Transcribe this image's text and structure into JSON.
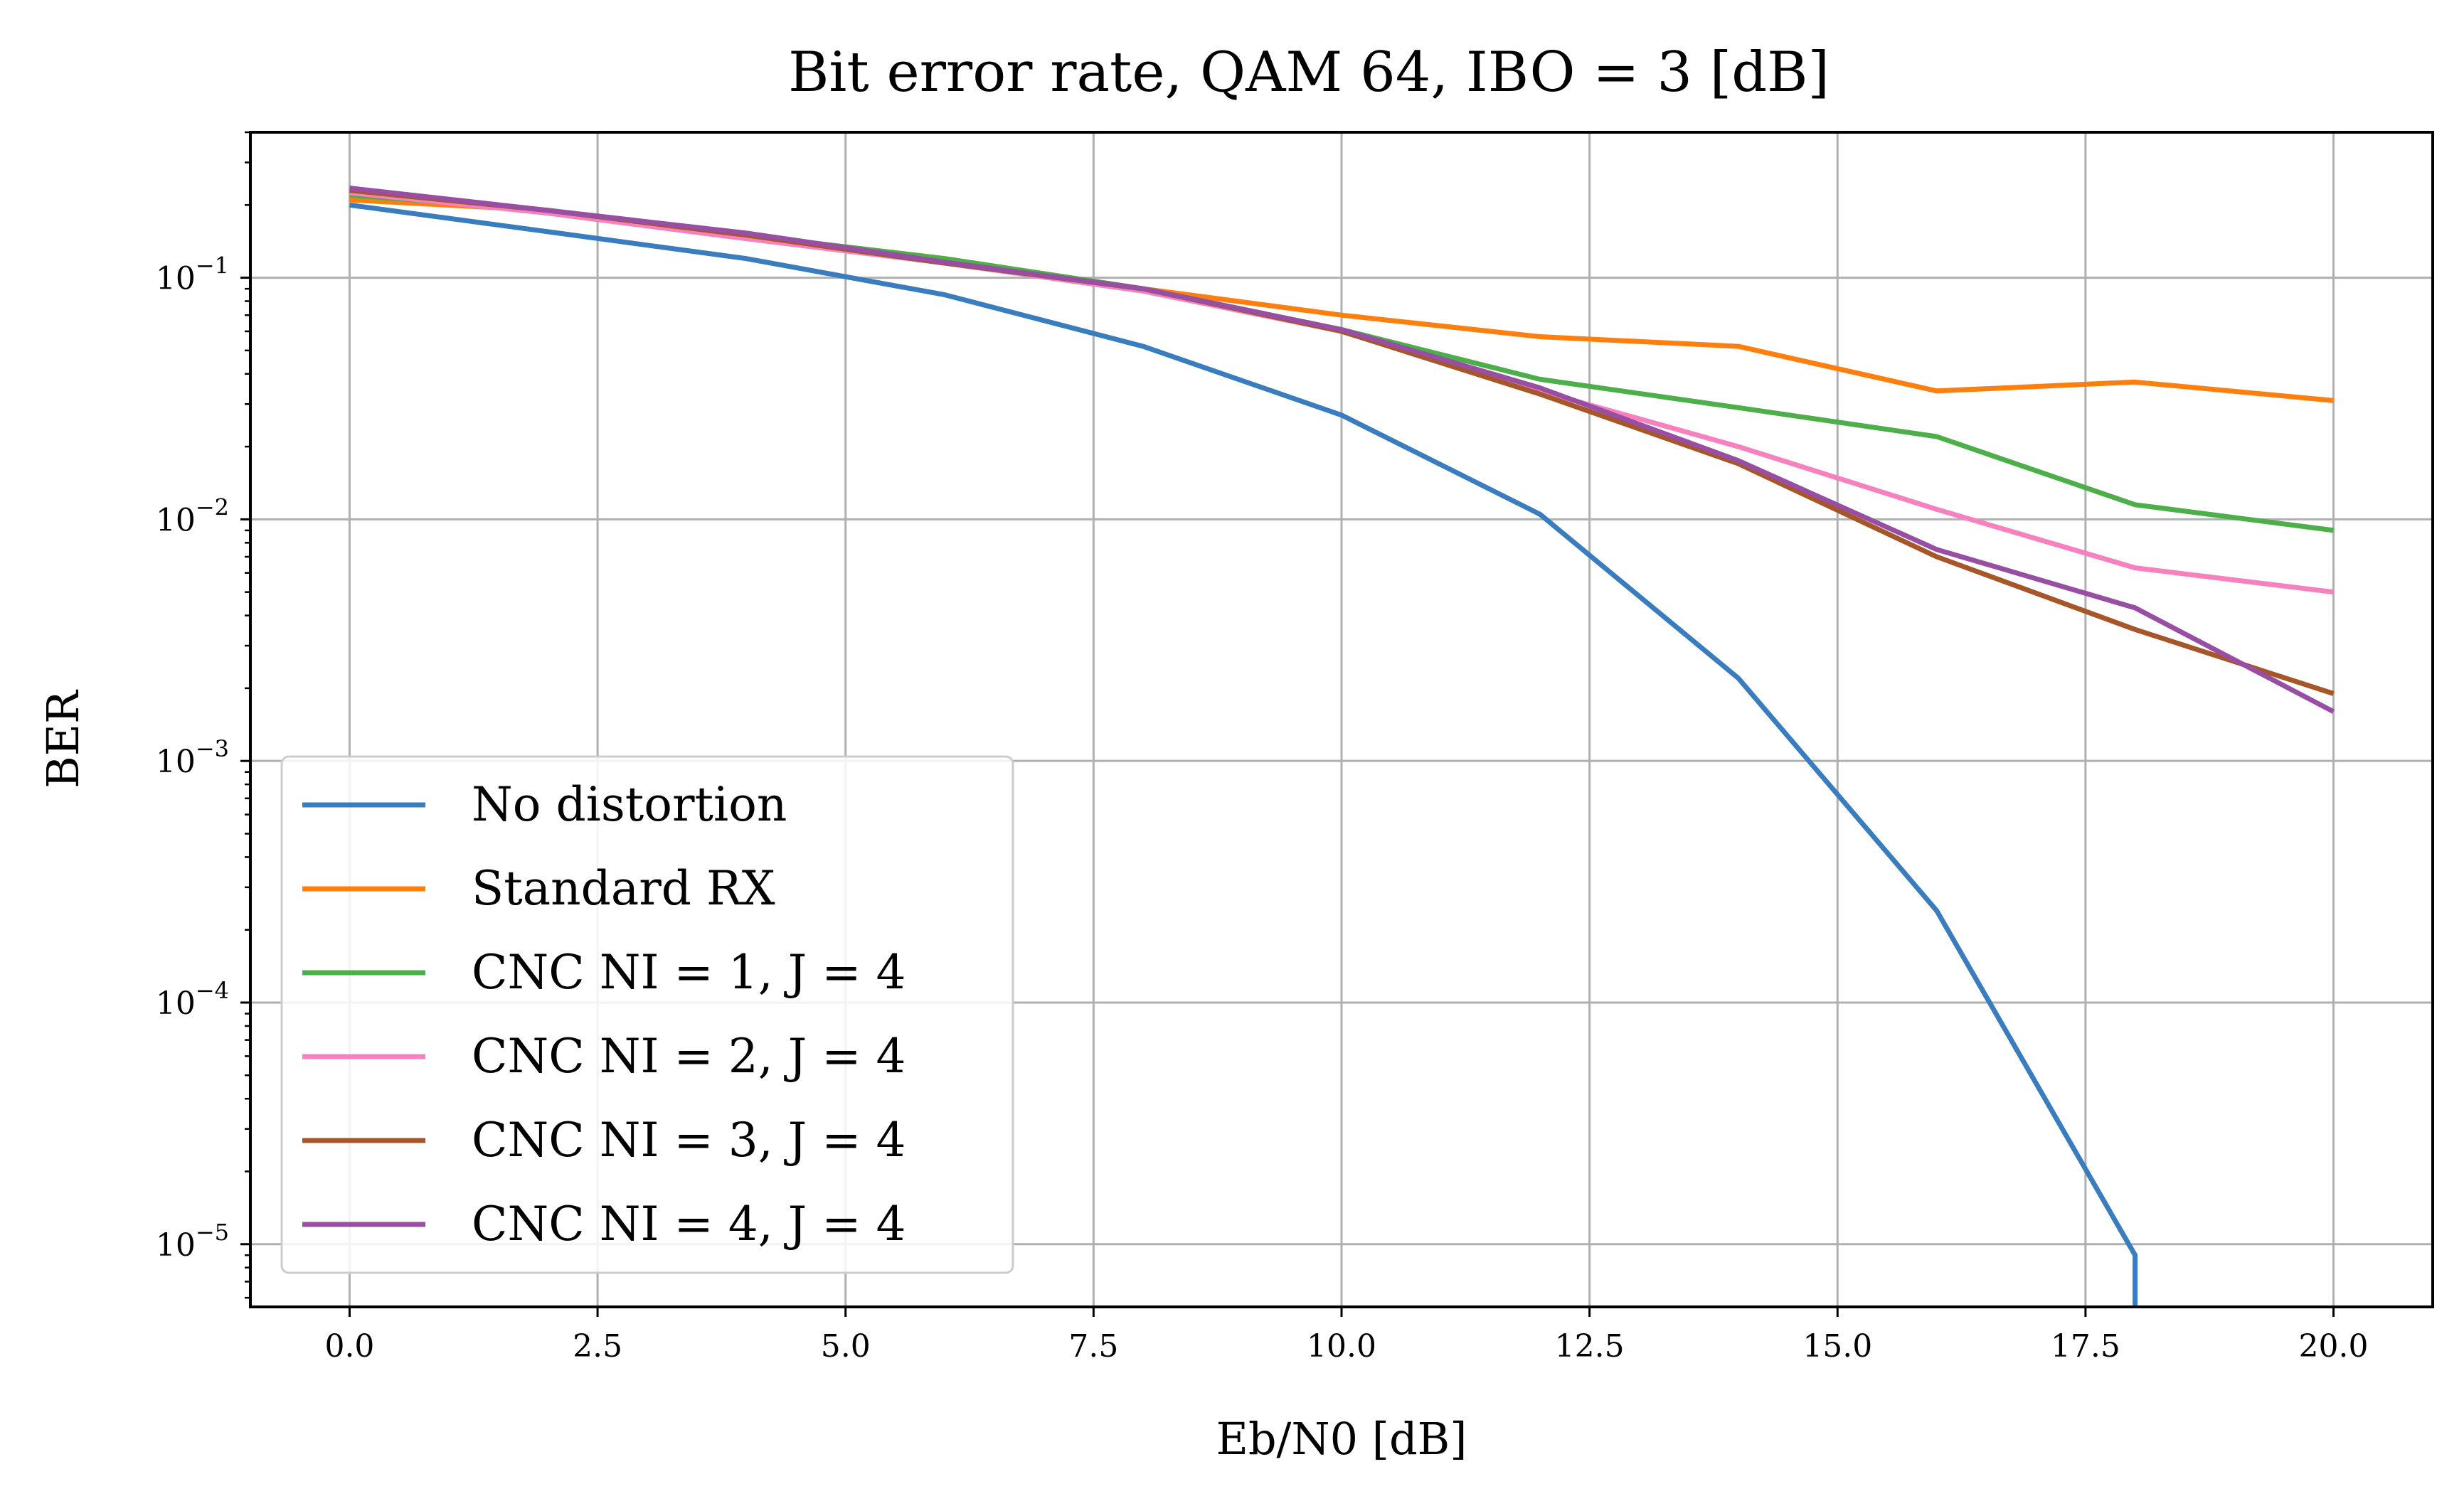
{
  "chart_data": {
    "type": "line",
    "title": "Bit error rate, QAM 64, IBO = 3 [dB]",
    "xlabel": "Eb/N0 [dB]",
    "ylabel": "BER",
    "xlim": [
      -1,
      21
    ],
    "ylim": [
      5.5e-06,
      0.4
    ],
    "yscale": "log",
    "grid": true,
    "legend_position": "lower-left",
    "x_ticks": [
      "0.0",
      "2.5",
      "5.0",
      "7.5",
      "10.0",
      "12.5",
      "15.0",
      "17.5",
      "20.0"
    ],
    "y_ticks": [
      {
        "base": "10",
        "exp": "−1"
      },
      {
        "base": "10",
        "exp": "−2"
      },
      {
        "base": "10",
        "exp": "−3"
      },
      {
        "base": "10",
        "exp": "−4"
      },
      {
        "base": "10",
        "exp": "−5"
      }
    ],
    "x": [
      0,
      2,
      4,
      6,
      8,
      10,
      12,
      14,
      16,
      18,
      20
    ],
    "series": [
      {
        "name": "No distortion",
        "color": "#3a7dbf",
        "values": [
          0.2,
          0.155,
          0.12,
          0.085,
          0.052,
          0.027,
          0.0105,
          0.0022,
          0.00024,
          9e-06,
          null
        ],
        "end_drop": {
          "x": 18,
          "y": 5.5e-06
        }
      },
      {
        "name": "Standard RX",
        "color": "#ff7f0e",
        "values": [
          0.21,
          0.19,
          0.15,
          0.12,
          0.09,
          0.07,
          0.057,
          0.052,
          0.034,
          0.037,
          0.031
        ]
      },
      {
        "name": "CNC NI = 1, J = 4",
        "color": "#4daf4a",
        "values": [
          0.22,
          0.19,
          0.15,
          0.12,
          0.09,
          0.061,
          0.038,
          0.029,
          0.022,
          0.0115,
          0.009
        ]
      },
      {
        "name": "CNC NI = 2, J = 4",
        "color": "#f781bf",
        "values": [
          0.225,
          0.185,
          0.145,
          0.115,
          0.088,
          0.06,
          0.034,
          0.02,
          0.011,
          0.0063,
          0.005
        ]
      },
      {
        "name": "CNC NI = 3, J = 4",
        "color": "#a65628",
        "values": [
          0.23,
          0.19,
          0.15,
          0.115,
          0.09,
          0.06,
          0.033,
          0.017,
          0.007,
          0.0035,
          0.0019
        ]
      },
      {
        "name": "CNC NI = 4, J = 4",
        "color": "#984ea3",
        "values": [
          0.235,
          0.19,
          0.153,
          0.116,
          0.09,
          0.061,
          0.035,
          0.0175,
          0.0075,
          0.0043,
          0.0016
        ]
      }
    ]
  }
}
